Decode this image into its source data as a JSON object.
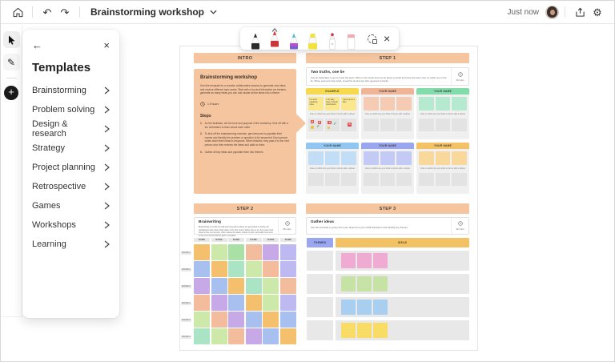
{
  "topbar": {
    "title": "Brainstorming workshop",
    "status": "Just now"
  },
  "templates": {
    "title": "Templates",
    "items": [
      "Brainstorming",
      "Problem solving",
      "Design & research",
      "Strategy",
      "Project planning",
      "Retrospective",
      "Games",
      "Workshops",
      "Learning"
    ]
  },
  "pen_toolbar": {
    "tools": [
      "black-pen",
      "red-pen",
      "galaxy-pen",
      "highlighter",
      "laser-pointer",
      "eraser",
      "lasso-select",
      "close"
    ],
    "selected_tool": "red-pen"
  },
  "colors": {
    "section_peach": "#f5c5a0",
    "black_pen": "#2b2b2b",
    "red_pen": "#d13438",
    "galaxy_pen_tip": "#3fc1c9",
    "galaxy_pen_band": "#7a5fd0",
    "highlighter": "#f4e23c",
    "eraser_top": "#f4a9b0",
    "sticker_red": "#e5484d",
    "sticker_green": "#2da44e",
    "sticker_yellow": "#f2c230"
  },
  "board": {
    "intro": {
      "header_label": "INTRO",
      "title": "Brainstorming workshop",
      "description": "Use this template for a creative collaborative session to generate new ideas and explore different topic areas. Start with a fun and interactive ice breaker, generate as many ideas you can and cluster all the ideas into a theme.",
      "duration": "1.5 hours",
      "steps_label": "Steps",
      "steps": [
        "As the facilitator, set the tone and purpose of the workshop. Kick off with a fun icebreaker to learn about each other.",
        "To kick off the brainstorming exercise, get everyone to populate their names and identify the problem or question to be answered. Each person writes down their ideas in response. When finished, they pass it to the next person who then reviews the ideas and adds to them.",
        "Gather all key ideas and populate them into themes."
      ]
    },
    "step1": {
      "header_label": "STEP 1",
      "card_title": "Two truths, one lie",
      "card_description": "Use an icebreaker to get to know the team. Write in two truths and one lie about yourself and have the team vote on which one is the lie. When everyone has voted, reveal the lie and see who guessed correctly.",
      "duration": "15 mins",
      "vote_caption": "Vote on which one you think is the lie with a sticker",
      "panels": [
        {
          "label": "EXAMPLE",
          "header_color": "#f7d94e",
          "note_color": "#fbe78e",
          "example": true,
          "notes": [
            "I've been skydiving twice",
            "I can play three musical instruments",
            "I grew up on a farm"
          ]
        },
        {
          "label": "YOUR NAME",
          "header_color": "#f0b597",
          "note_color": "#f5ccb3",
          "example": false,
          "notes": [
            "",
            "",
            ""
          ]
        },
        {
          "label": "YOUR NAME",
          "header_color": "#82dcaa",
          "note_color": "#b5ead0",
          "example": false,
          "notes": [
            "",
            "",
            ""
          ]
        },
        {
          "label": "YOUR NAME",
          "header_color": "#90c6ef",
          "note_color": "#c1def6",
          "example": false,
          "notes": [
            "",
            "",
            ""
          ]
        },
        {
          "label": "YOUR NAME",
          "header_color": "#9aa6ee",
          "note_color": "#c3caf5",
          "example": false,
          "notes": [
            "",
            "",
            ""
          ]
        },
        {
          "label": "YOUR NAME",
          "header_color": "#f3c266",
          "note_color": "#f8d99b",
          "example": false,
          "notes": [
            "",
            "",
            ""
          ]
        }
      ],
      "example_stickers": [
        [
          {
            "t": "x",
            "x": 15,
            "y": 12
          },
          {
            "t": "x",
            "x": 62,
            "y": 16
          },
          {
            "t": "dot",
            "x": 18,
            "y": 58
          },
          {
            "t": "check",
            "x": 55,
            "y": 48
          }
        ],
        [
          {
            "t": "x",
            "x": 20,
            "y": 16
          },
          {
            "t": "check",
            "x": 56,
            "y": 30
          },
          {
            "t": "dot",
            "x": 16,
            "y": 60
          }
        ],
        [
          {
            "t": "x",
            "x": 42,
            "y": 34
          }
        ]
      ]
    },
    "step2": {
      "header_label": "STEP 2",
      "card_title": "Brainwriting",
      "card_description": "Brainwriting is a twist on brainstorming where ideas are generated in writing. All participants write down their ideas in the first round. When time is up, they pass their sheet to the next person, who reviews the ideas, builds on them and adds new ones in the next round until the grid is complete.",
      "duration": "45 mins",
      "col_header": "NAME",
      "row_labels": [
        "ROUND 1",
        "ROUND 2",
        "ROUND 3",
        "ROUND 4",
        "ROUND 5",
        "ROUND 6"
      ],
      "palette": {
        "orange": "#f4c06e",
        "lightgreen": "#cde9a9",
        "green": "#a9e0a6",
        "mint": "#abe3c5",
        "peach": "#f3bc9d",
        "purple": "#c7a9e8",
        "lavender": "#beb9f0",
        "blue": "#a8c0f0"
      },
      "grid": [
        [
          "orange",
          "lightgreen",
          "green",
          "peach",
          "purple",
          "lavender"
        ],
        [
          "blue",
          "orange",
          "mint",
          "lightgreen",
          "peach",
          "lavender"
        ],
        [
          "purple",
          "blue",
          "orange",
          "mint",
          "lightgreen",
          "peach"
        ],
        [
          "peach",
          "purple",
          "blue",
          "orange",
          "lightgreen",
          "lavender"
        ],
        [
          "lightgreen",
          "peach",
          "purple",
          "blue",
          "orange",
          "blue"
        ],
        [
          "mint",
          "lightgreen",
          "peach",
          "purple",
          "blue",
          "orange"
        ]
      ]
    },
    "step3": {
      "header_label": "STEP 3",
      "card_title": "Gather ideas",
      "card_description": "Use this template to group all of your ideas from your initial brainstorm and identify key themes",
      "duration": "30 mins",
      "themes_header": "THEMES",
      "ideas_header": "IDEAS",
      "themes_header_color": "#9aa6ee",
      "ideas_header_color": "#f3c266",
      "rows": [
        {
          "note_color": "#efabd2"
        },
        {
          "note_color": "#c6e3a5"
        },
        {
          "note_color": "#a8cff0"
        },
        {
          "note_color": "#f8dc66"
        }
      ]
    }
  }
}
